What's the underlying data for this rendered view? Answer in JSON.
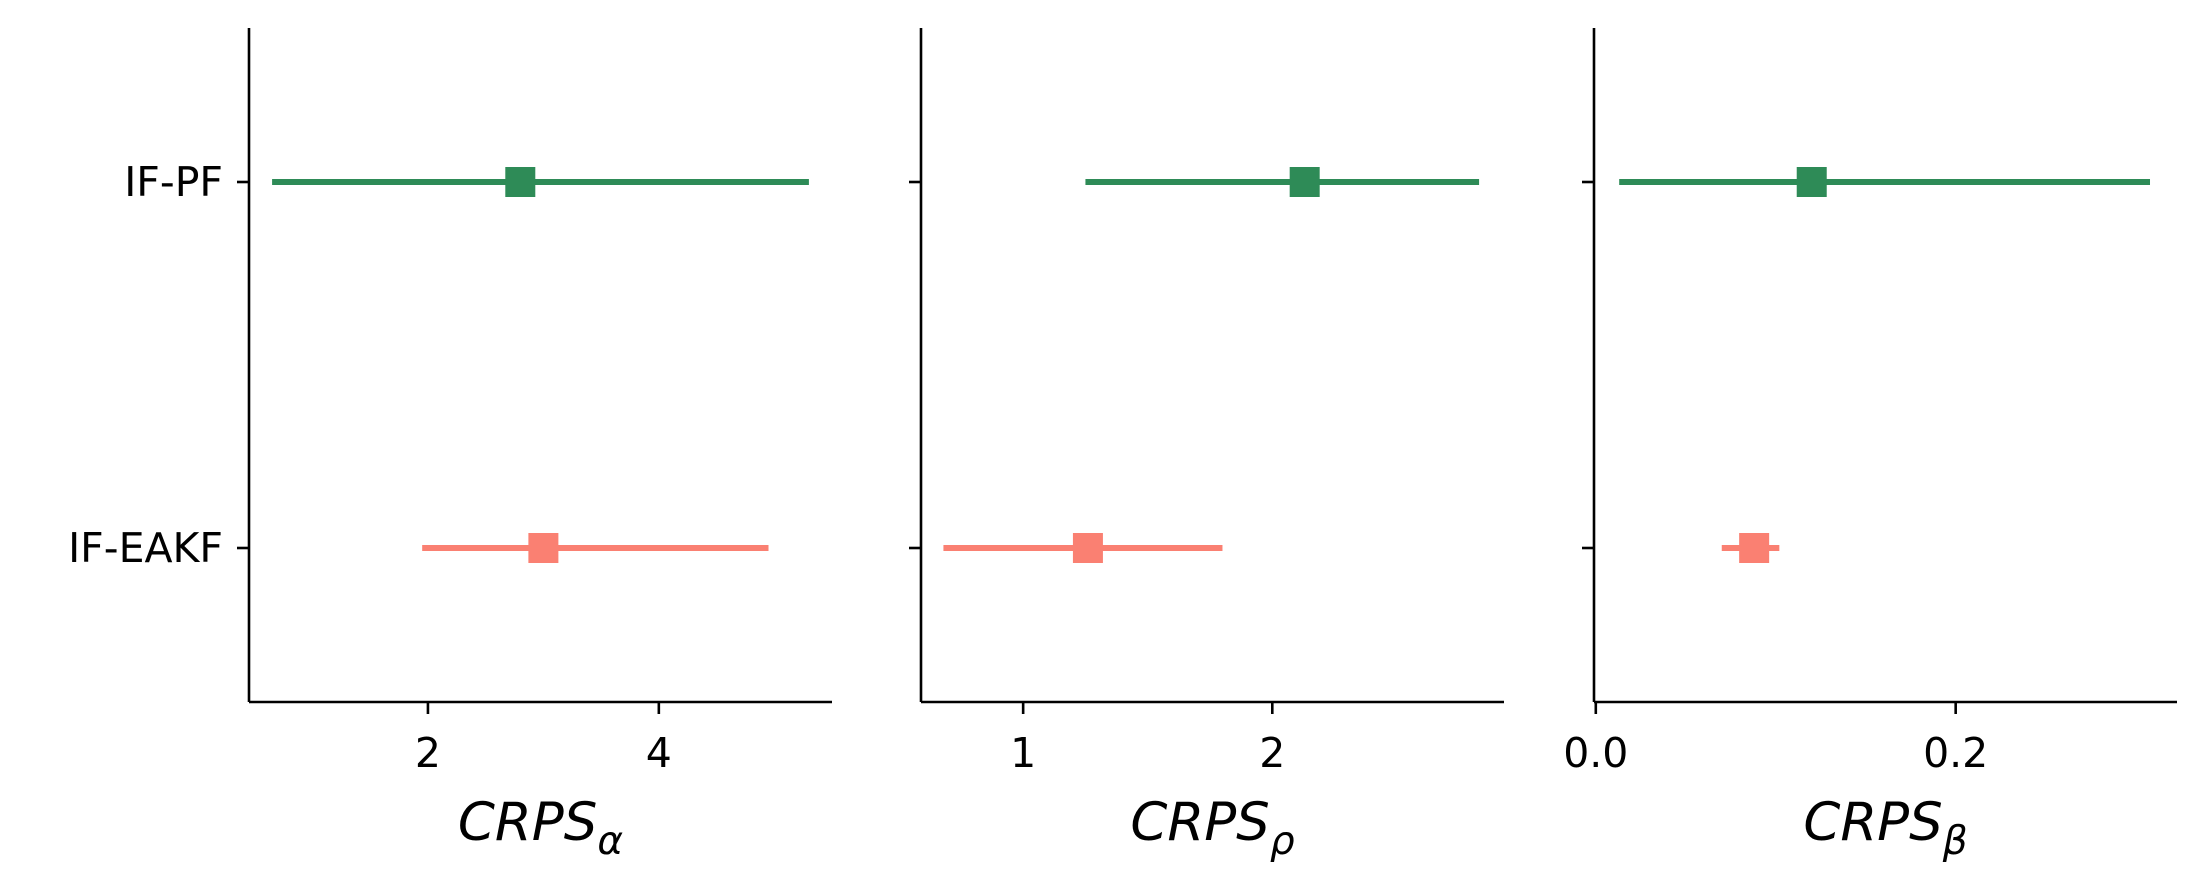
{
  "chart_data": [
    {
      "type": "errorbar",
      "categories": [
        "IF-PF",
        "IF-EAKF"
      ],
      "xlabel": "CRPS",
      "xlabel_subscript": "α",
      "xlim": [
        0.45,
        5.5
      ],
      "xticks": [
        2,
        4
      ],
      "xtick_labels": [
        "2",
        "4"
      ],
      "series": [
        {
          "category": "IF-PF",
          "color": "#2e8b57",
          "center": 2.8,
          "low": 0.65,
          "high": 5.3
        },
        {
          "category": "IF-EAKF",
          "color": "#fa8072",
          "center": 3.0,
          "low": 1.95,
          "high": 4.95
        }
      ],
      "show_ytick_labels": true
    },
    {
      "type": "errorbar",
      "categories": [
        "IF-PF",
        "IF-EAKF"
      ],
      "xlabel": "CRPS",
      "xlabel_subscript": "ρ",
      "xlim": [
        0.59,
        2.93
      ],
      "xticks": [
        1,
        2
      ],
      "xtick_labels": [
        "1",
        "2"
      ],
      "series": [
        {
          "category": "IF-PF",
          "color": "#2e8b57",
          "center": 2.13,
          "low": 1.25,
          "high": 2.83
        },
        {
          "category": "IF-EAKF",
          "color": "#fa8072",
          "center": 1.26,
          "low": 0.68,
          "high": 1.8
        }
      ],
      "show_ytick_labels": false
    },
    {
      "type": "errorbar",
      "categories": [
        "IF-PF",
        "IF-EAKF"
      ],
      "xlabel": "CRPS",
      "xlabel_subscript": "β",
      "xlim": [
        -0.001,
        0.323
      ],
      "xticks": [
        0.0,
        0.2
      ],
      "xtick_labels": [
        "0.0",
        "0.2"
      ],
      "series": [
        {
          "category": "IF-PF",
          "color": "#2e8b57",
          "center": 0.12,
          "low": 0.013,
          "high": 0.308
        },
        {
          "category": "IF-EAKF",
          "color": "#fa8072",
          "center": 0.088,
          "low": 0.07,
          "high": 0.102
        }
      ],
      "show_ytick_labels": false
    }
  ]
}
